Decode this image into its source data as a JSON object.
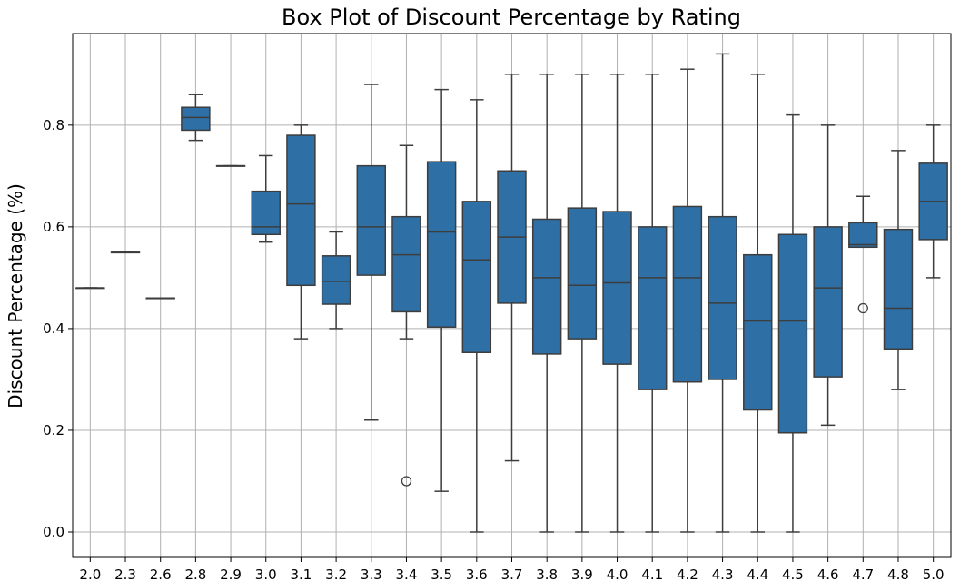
{
  "chart_data": {
    "type": "box",
    "title": "Box Plot of Discount Percentage by Rating",
    "xlabel": "",
    "ylabel": "Discount Percentage (%)",
    "ylim": [
      -0.05,
      0.98
    ],
    "yticks": [
      "0.0",
      "0.2",
      "0.4",
      "0.6",
      "0.8"
    ],
    "grid": true,
    "box_color": "#2e6fa6",
    "edge_color": "#3d3d3d",
    "categories": [
      "2.0",
      "2.3",
      "2.6",
      "2.8",
      "2.9",
      "3.0",
      "3.1",
      "3.2",
      "3.3",
      "3.4",
      "3.5",
      "3.6",
      "3.7",
      "3.8",
      "3.9",
      "4.0",
      "4.1",
      "4.2",
      "4.3",
      "4.4",
      "4.5",
      "4.6",
      "4.7",
      "4.8",
      "5.0"
    ],
    "boxes": [
      {
        "min": 0.48,
        "q1": 0.48,
        "median": 0.48,
        "q3": 0.48,
        "max": 0.48,
        "outliers": []
      },
      {
        "min": 0.55,
        "q1": 0.55,
        "median": 0.55,
        "q3": 0.55,
        "max": 0.55,
        "outliers": []
      },
      {
        "min": 0.46,
        "q1": 0.46,
        "median": 0.46,
        "q3": 0.46,
        "max": 0.46,
        "outliers": []
      },
      {
        "min": 0.77,
        "q1": 0.79,
        "median": 0.815,
        "q3": 0.835,
        "max": 0.86,
        "outliers": []
      },
      {
        "min": 0.72,
        "q1": 0.72,
        "median": 0.72,
        "q3": 0.72,
        "max": 0.72,
        "outliers": []
      },
      {
        "min": 0.57,
        "q1": 0.585,
        "median": 0.6,
        "q3": 0.67,
        "max": 0.74,
        "outliers": []
      },
      {
        "min": 0.38,
        "q1": 0.485,
        "median": 0.645,
        "q3": 0.78,
        "max": 0.8,
        "outliers": []
      },
      {
        "min": 0.4,
        "q1": 0.448,
        "median": 0.493,
        "q3": 0.543,
        "max": 0.59,
        "outliers": []
      },
      {
        "min": 0.22,
        "q1": 0.505,
        "median": 0.6,
        "q3": 0.72,
        "max": 0.88,
        "outliers": []
      },
      {
        "min": 0.38,
        "q1": 0.433,
        "median": 0.545,
        "q3": 0.62,
        "max": 0.76,
        "outliers": [
          0.1
        ]
      },
      {
        "min": 0.08,
        "q1": 0.403,
        "median": 0.59,
        "q3": 0.728,
        "max": 0.87,
        "outliers": []
      },
      {
        "min": 0.0,
        "q1": 0.353,
        "median": 0.535,
        "q3": 0.65,
        "max": 0.85,
        "outliers": []
      },
      {
        "min": 0.14,
        "q1": 0.45,
        "median": 0.58,
        "q3": 0.71,
        "max": 0.9,
        "outliers": []
      },
      {
        "min": 0.0,
        "q1": 0.35,
        "median": 0.5,
        "q3": 0.615,
        "max": 0.9,
        "outliers": []
      },
      {
        "min": 0.0,
        "q1": 0.38,
        "median": 0.485,
        "q3": 0.637,
        "max": 0.9,
        "outliers": []
      },
      {
        "min": 0.0,
        "q1": 0.33,
        "median": 0.49,
        "q3": 0.63,
        "max": 0.9,
        "outliers": []
      },
      {
        "min": 0.0,
        "q1": 0.28,
        "median": 0.5,
        "q3": 0.6,
        "max": 0.9,
        "outliers": []
      },
      {
        "min": 0.0,
        "q1": 0.295,
        "median": 0.5,
        "q3": 0.64,
        "max": 0.91,
        "outliers": []
      },
      {
        "min": 0.0,
        "q1": 0.3,
        "median": 0.45,
        "q3": 0.62,
        "max": 0.94,
        "outliers": []
      },
      {
        "min": 0.0,
        "q1": 0.24,
        "median": 0.415,
        "q3": 0.545,
        "max": 0.9,
        "outliers": []
      },
      {
        "min": 0.0,
        "q1": 0.195,
        "median": 0.415,
        "q3": 0.585,
        "max": 0.82,
        "outliers": []
      },
      {
        "min": 0.21,
        "q1": 0.305,
        "median": 0.48,
        "q3": 0.6,
        "max": 0.8,
        "outliers": []
      },
      {
        "min": 0.56,
        "q1": 0.56,
        "median": 0.565,
        "q3": 0.608,
        "max": 0.66,
        "outliers": [
          0.44
        ]
      },
      {
        "min": 0.28,
        "q1": 0.36,
        "median": 0.44,
        "q3": 0.595,
        "max": 0.75,
        "outliers": []
      },
      {
        "min": 0.5,
        "q1": 0.575,
        "median": 0.65,
        "q3": 0.725,
        "max": 0.8,
        "outliers": []
      }
    ]
  }
}
